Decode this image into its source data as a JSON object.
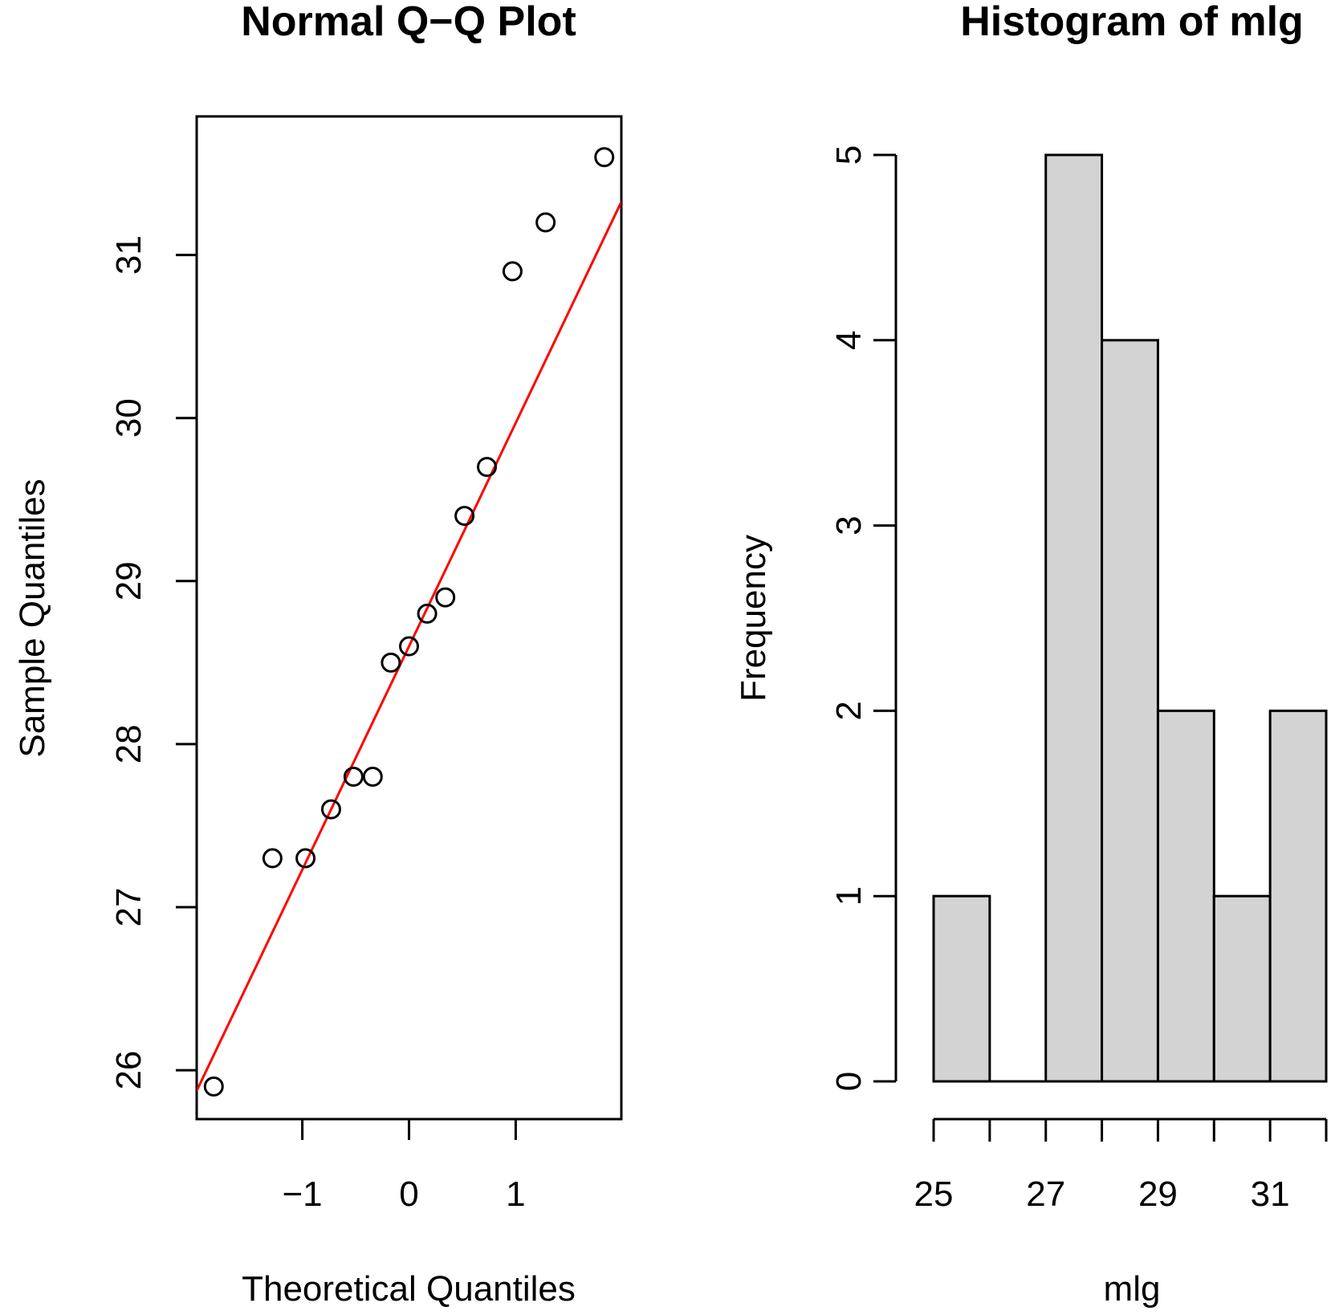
{
  "colors": {
    "background": "#ffffff",
    "axis": "#000000",
    "qq_line": "#ff0000",
    "bar_fill": "#d3d3d3",
    "bar_stroke": "#000000"
  },
  "chart_data": [
    {
      "type": "scatter",
      "title": "Normal Q−Q Plot",
      "xlabel": "Theoretical Quantiles",
      "ylabel": "Sample Quantiles",
      "xlim": [
        -1.99,
        1.99
      ],
      "ylim": [
        25.7,
        31.85
      ],
      "x_ticks": [
        -1,
        0,
        1
      ],
      "x_tick_labels": [
        "−1",
        "0",
        "1"
      ],
      "y_ticks": [
        26,
        27,
        28,
        29,
        30,
        31
      ],
      "y_tick_labels": [
        "26",
        "27",
        "28",
        "29",
        "30",
        "31"
      ],
      "grid": false,
      "legend": "none",
      "points": [
        {
          "x": -1.83,
          "y": 25.9
        },
        {
          "x": -1.28,
          "y": 27.3
        },
        {
          "x": -0.97,
          "y": 27.3
        },
        {
          "x": -0.73,
          "y": 27.6
        },
        {
          "x": -0.52,
          "y": 27.8
        },
        {
          "x": -0.34,
          "y": 27.8
        },
        {
          "x": -0.17,
          "y": 28.5
        },
        {
          "x": 0.0,
          "y": 28.6
        },
        {
          "x": 0.17,
          "y": 28.8
        },
        {
          "x": 0.34,
          "y": 28.9
        },
        {
          "x": 0.52,
          "y": 29.4
        },
        {
          "x": 0.73,
          "y": 29.7
        },
        {
          "x": 0.97,
          "y": 30.9
        },
        {
          "x": 1.28,
          "y": 31.2
        },
        {
          "x": 1.83,
          "y": 31.6
        }
      ],
      "reference_line": {
        "intercept": 28.6,
        "slope": 1.37
      }
    },
    {
      "type": "bar",
      "subtype": "histogram",
      "title": "Histogram of mlg",
      "xlabel": "mlg",
      "ylabel": "Frequency",
      "bins": [
        {
          "start": 25,
          "end": 26,
          "count": 1
        },
        {
          "start": 26,
          "end": 27,
          "count": 0
        },
        {
          "start": 27,
          "end": 28,
          "count": 5
        },
        {
          "start": 28,
          "end": 29,
          "count": 4
        },
        {
          "start": 29,
          "end": 30,
          "count": 2
        },
        {
          "start": 30,
          "end": 31,
          "count": 1
        },
        {
          "start": 31,
          "end": 32,
          "count": 2
        }
      ],
      "xlim": [
        25,
        32
      ],
      "ylim": [
        0,
        5
      ],
      "x_ticks": [
        25,
        26,
        27,
        28,
        29,
        30,
        31,
        32
      ],
      "x_tick_labels": [
        "25",
        "",
        "27",
        "",
        "29",
        "",
        "31",
        ""
      ],
      "y_ticks": [
        0,
        1,
        2,
        3,
        4,
        5
      ],
      "y_tick_labels": [
        "0",
        "1",
        "2",
        "3",
        "4",
        "5"
      ],
      "grid": false,
      "legend": "none"
    }
  ]
}
